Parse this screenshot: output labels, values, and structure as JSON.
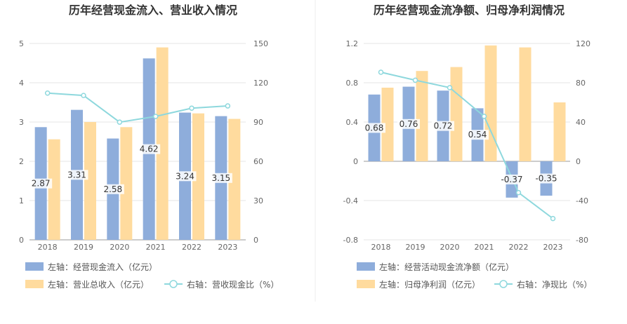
{
  "chart_data": [
    {
      "type": "bar",
      "title": "历年经营现金流入、营业收入情况",
      "categories": [
        "2018",
        "2019",
        "2020",
        "2021",
        "2022",
        "2023"
      ],
      "ylim_left": [
        0,
        5
      ],
      "yticks_left": [
        "0",
        "1",
        "2",
        "3",
        "4",
        "5"
      ],
      "ylim_right": [
        0,
        150
      ],
      "yticks_right": [
        "0",
        "30",
        "60",
        "90",
        "120",
        "150"
      ],
      "series": [
        {
          "name": "左轴：经营现金流入（亿元）",
          "kind": "bar",
          "axis": "left",
          "color": "#8EADDB",
          "values": [
            2.87,
            3.31,
            2.58,
            4.62,
            3.24,
            3.15
          ],
          "labels": [
            "2.87",
            "3.31",
            "2.58",
            "4.62",
            "3.24",
            "3.15"
          ]
        },
        {
          "name": "左轴：营业总收入（亿元）",
          "kind": "bar",
          "axis": "left",
          "color": "#FFDB9E",
          "values": [
            2.56,
            3.0,
            2.87,
            4.9,
            3.22,
            3.08
          ]
        },
        {
          "name": "右轴：营收现金比（%）",
          "kind": "line",
          "axis": "right",
          "color": "#8ED8DD",
          "values": [
            112.1,
            110.3,
            89.9,
            94.3,
            100.6,
            102.3
          ]
        }
      ],
      "grid": true,
      "legend": "bottom-left"
    },
    {
      "type": "bar",
      "title": "历年经营现金流净额、归母净利润情况",
      "categories": [
        "2018",
        "2019",
        "2020",
        "2021",
        "2022",
        "2023"
      ],
      "ylim_left": [
        -0.8,
        1.2
      ],
      "yticks_left": [
        "-0.8",
        "-0.4",
        "0",
        "0.4",
        "0.8",
        "1.2"
      ],
      "ylim_right": [
        -80,
        120
      ],
      "yticks_right": [
        "-80",
        "-40",
        "0",
        "40",
        "80",
        "120"
      ],
      "series": [
        {
          "name": "左轴：经营活动现金流净额（亿元）",
          "kind": "bar",
          "axis": "left",
          "color": "#8EADDB",
          "values": [
            0.68,
            0.76,
            0.72,
            0.54,
            -0.37,
            -0.35
          ],
          "labels": [
            "0.68",
            "0.76",
            "0.72",
            "0.54",
            "-0.37",
            "-0.35"
          ]
        },
        {
          "name": "左轴：归母净利润（亿元）",
          "kind": "bar",
          "axis": "left",
          "color": "#FFDB9E",
          "values": [
            0.75,
            0.92,
            0.96,
            1.18,
            1.16,
            0.6
          ]
        },
        {
          "name": "右轴：净现比（%）",
          "kind": "line",
          "axis": "right",
          "color": "#8ED8DD",
          "values": [
            90.7,
            82.6,
            75.0,
            45.8,
            -31.9,
            -58.3
          ]
        }
      ],
      "grid": true,
      "legend": "bottom-left"
    }
  ]
}
